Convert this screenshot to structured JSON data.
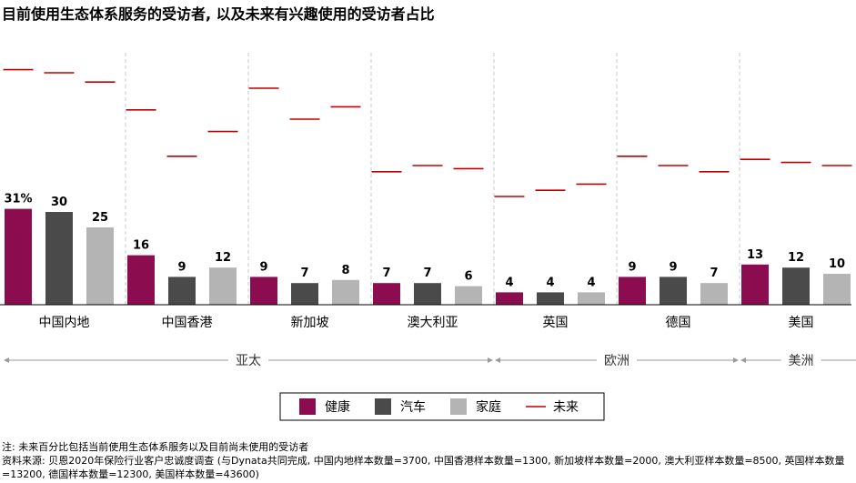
{
  "title": "目前使用生态体系服务的受访者, 以及未来有兴趣使用的受访者占比",
  "colors": {
    "health": "#8b0d4f",
    "auto": "#4a4a4a",
    "home": "#b4b4b4",
    "future": "#c00000"
  },
  "legend": [
    {
      "key": "health",
      "label": "健康",
      "kind": "box"
    },
    {
      "key": "auto",
      "label": "汽车",
      "kind": "box"
    },
    {
      "key": "home",
      "label": "家庭",
      "kind": "box"
    },
    {
      "key": "future",
      "label": "未来",
      "kind": "line"
    }
  ],
  "chart_data": {
    "type": "bar",
    "categories": [
      "中国内地",
      "中国香港",
      "新加坡",
      "澳大利亚",
      "英国",
      "德国",
      "美国"
    ],
    "series": [
      {
        "name": "健康",
        "key": "health",
        "values": [
          31,
          16,
          9,
          7,
          4,
          9,
          13
        ]
      },
      {
        "name": "汽车",
        "key": "auto",
        "values": [
          30,
          9,
          7,
          7,
          4,
          9,
          12
        ]
      },
      {
        "name": "家庭",
        "key": "home",
        "values": [
          25,
          12,
          8,
          6,
          4,
          7,
          10
        ]
      }
    ],
    "future": {
      "name": "未来",
      "values": [
        [
          76,
          75,
          72
        ],
        [
          63,
          48,
          56
        ],
        [
          70,
          60,
          64
        ],
        [
          43,
          45,
          44
        ],
        [
          35,
          37,
          39
        ],
        [
          48,
          45,
          43
        ],
        [
          47,
          46,
          45
        ]
      ]
    },
    "value_labels": [
      [
        "31%",
        "30",
        "25"
      ],
      [
        "16",
        "9",
        "12"
      ],
      [
        "9",
        "7",
        "8"
      ],
      [
        "7",
        "7",
        "6"
      ],
      [
        "4",
        "4",
        "4"
      ],
      [
        "9",
        "9",
        "7"
      ],
      [
        "13",
        "12",
        "10"
      ]
    ],
    "regions": [
      {
        "label": "亚太",
        "start": 0,
        "end": 3
      },
      {
        "label": "欧洲",
        "start": 4,
        "end": 5
      },
      {
        "label": "美洲",
        "start": 6,
        "end": 6
      }
    ],
    "ylim": [
      0,
      80
    ],
    "xlabel": "",
    "ylabel": ""
  },
  "notes": {
    "note": "注: 未来百分比包括当前使用生态体系服务以及目前尚未使用的受访者",
    "source": "资料来源: 贝恩2020年保险行业客户忠诚度调查 (与Dynata共同完成, 中国内地样本数量=3700, 中国香港样本数量=1300, 新加坡样本数量=2000, 澳大利亚样本数量=8500, 英国样本数量=13200, 德国样本数量=12300, 美国样本数量=43600)"
  }
}
